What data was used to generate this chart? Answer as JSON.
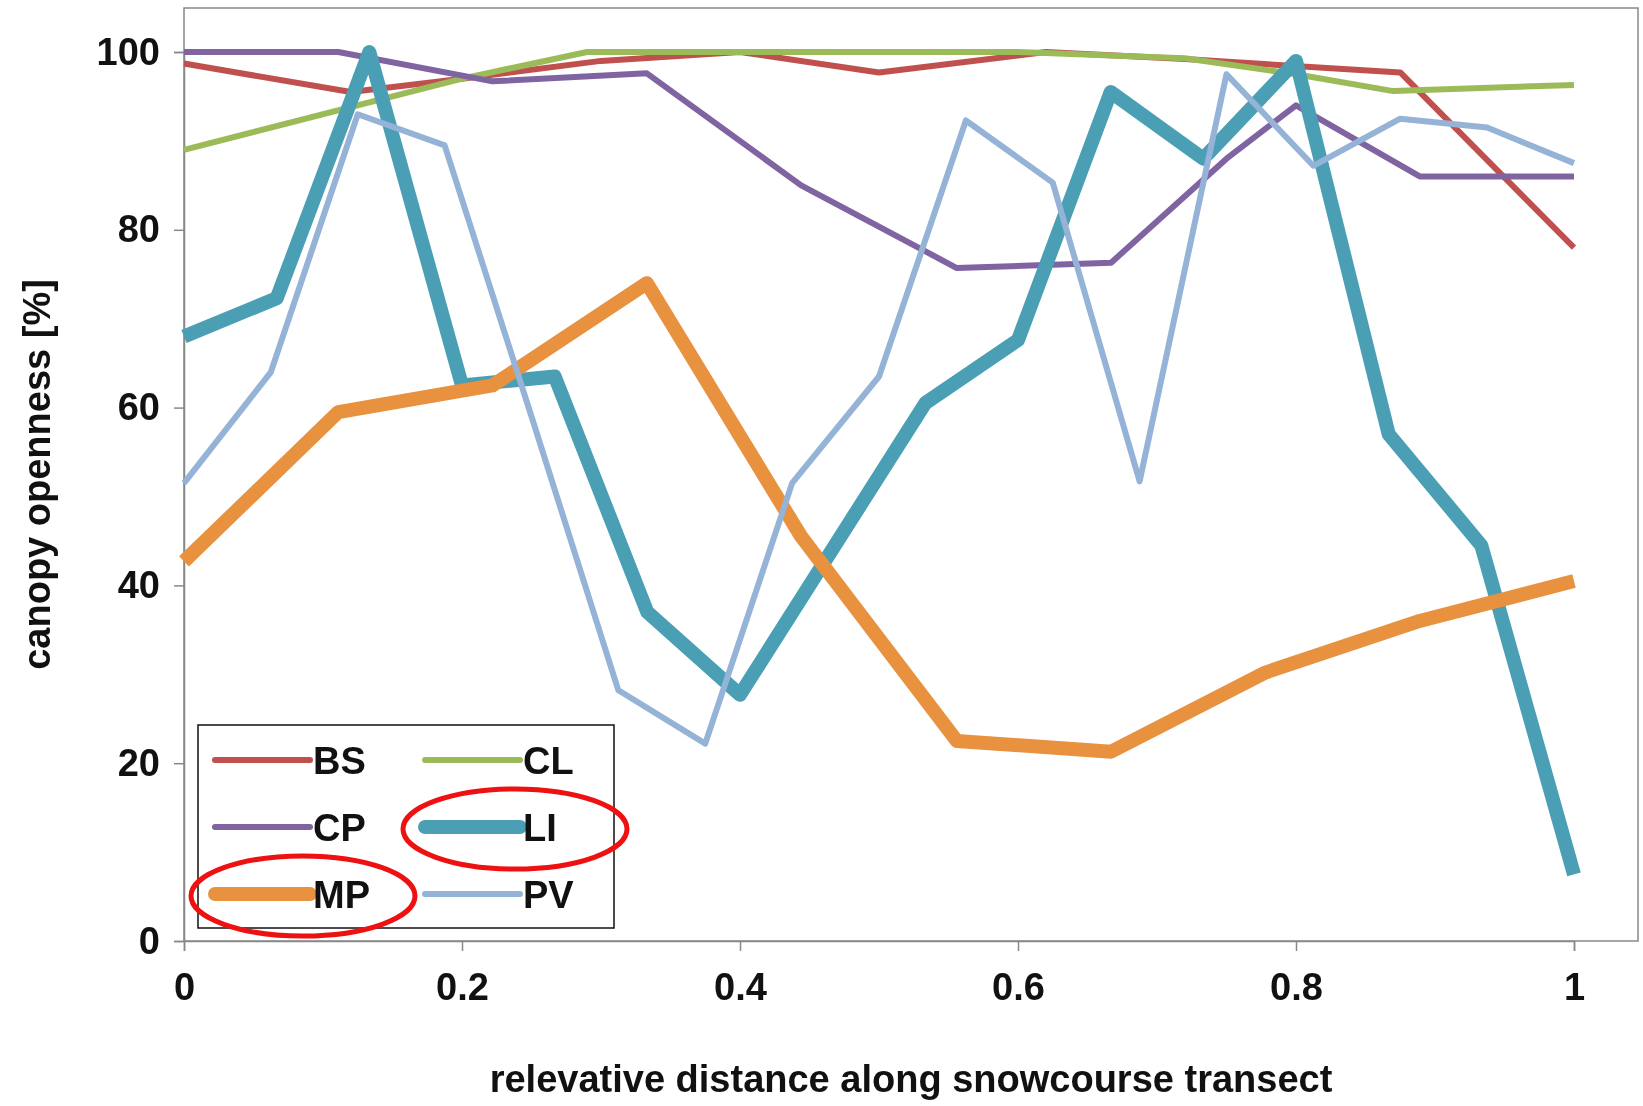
{
  "chart_data": {
    "type": "line",
    "xlabel": "relevative distance along snowcourse transect",
    "ylabel": "canopy openness [%]",
    "xlim": [
      0,
      1
    ],
    "xticks": [
      0,
      0.2,
      0.4,
      0.6,
      0.8,
      1
    ],
    "ylim": [
      0,
      100
    ],
    "yticks": [
      0,
      20,
      40,
      60,
      80,
      100
    ],
    "grid": false,
    "legend": "bottom left",
    "marker": "none",
    "line_style": "solid",
    "series": [
      {
        "name": "BS",
        "color": "#c0504d",
        "x": [
          0,
          0.12,
          0.2,
          0.3,
          0.4,
          0.5,
          0.62,
          0.72,
          0.875,
          1
        ],
        "values": [
          98.7,
          95.5,
          97,
          99,
          100,
          97.7,
          100,
          99.2,
          97.7,
          78
        ]
      },
      {
        "name": "CL",
        "color": "#9bbb59",
        "x": [
          0,
          0.2,
          0.29,
          0.6,
          0.72,
          0.8,
          0.87,
          1
        ],
        "values": [
          89,
          97,
          100,
          100,
          99.3,
          97.5,
          95.6,
          96.3
        ]
      },
      {
        "name": "CP",
        "color": "#8064a2",
        "x": [
          0,
          0.111,
          0.222,
          0.333,
          0.444,
          0.556,
          0.667,
          0.75,
          0.8,
          0.889,
          1
        ],
        "values": [
          100,
          100,
          96.7,
          97.6,
          85,
          75.7,
          76.3,
          88,
          94,
          86,
          86
        ]
      },
      {
        "name": "LI",
        "color": "#4a9fb5",
        "x": [
          0,
          0.0667,
          0.1333,
          0.2,
          0.2667,
          0.3333,
          0.4,
          0.5333,
          0.6,
          0.6667,
          0.7333,
          0.8,
          0.8667,
          0.9333,
          1
        ],
        "values": [
          68,
          72.3,
          100,
          62.5,
          63.5,
          37,
          27.7,
          60.5,
          67.6,
          95.5,
          88,
          99,
          57,
          44.5,
          7.5
        ]
      },
      {
        "name": "MP",
        "color": "#e8913f",
        "x": [
          0,
          0.111,
          0.222,
          0.333,
          0.444,
          0.556,
          0.667,
          0.778,
          0.889,
          1
        ],
        "values": [
          42.7,
          59.5,
          62.5,
          74,
          45.5,
          22.5,
          21.3,
          30.2,
          36,
          40.5
        ]
      },
      {
        "name": "PV",
        "color": "#95b3d7",
        "x": [
          0,
          0.0625,
          0.125,
          0.1875,
          0.25,
          0.3125,
          0.375,
          0.4375,
          0.5,
          0.5625,
          0.625,
          0.6875,
          0.75,
          0.8125,
          0.875,
          0.9375,
          1
        ],
        "values": [
          51.5,
          64,
          93,
          89.5,
          59,
          28.2,
          22.2,
          51.5,
          63.5,
          92.3,
          85.3,
          51.7,
          97.5,
          87.2,
          92.5,
          91.5,
          87.5
        ]
      }
    ]
  }
}
